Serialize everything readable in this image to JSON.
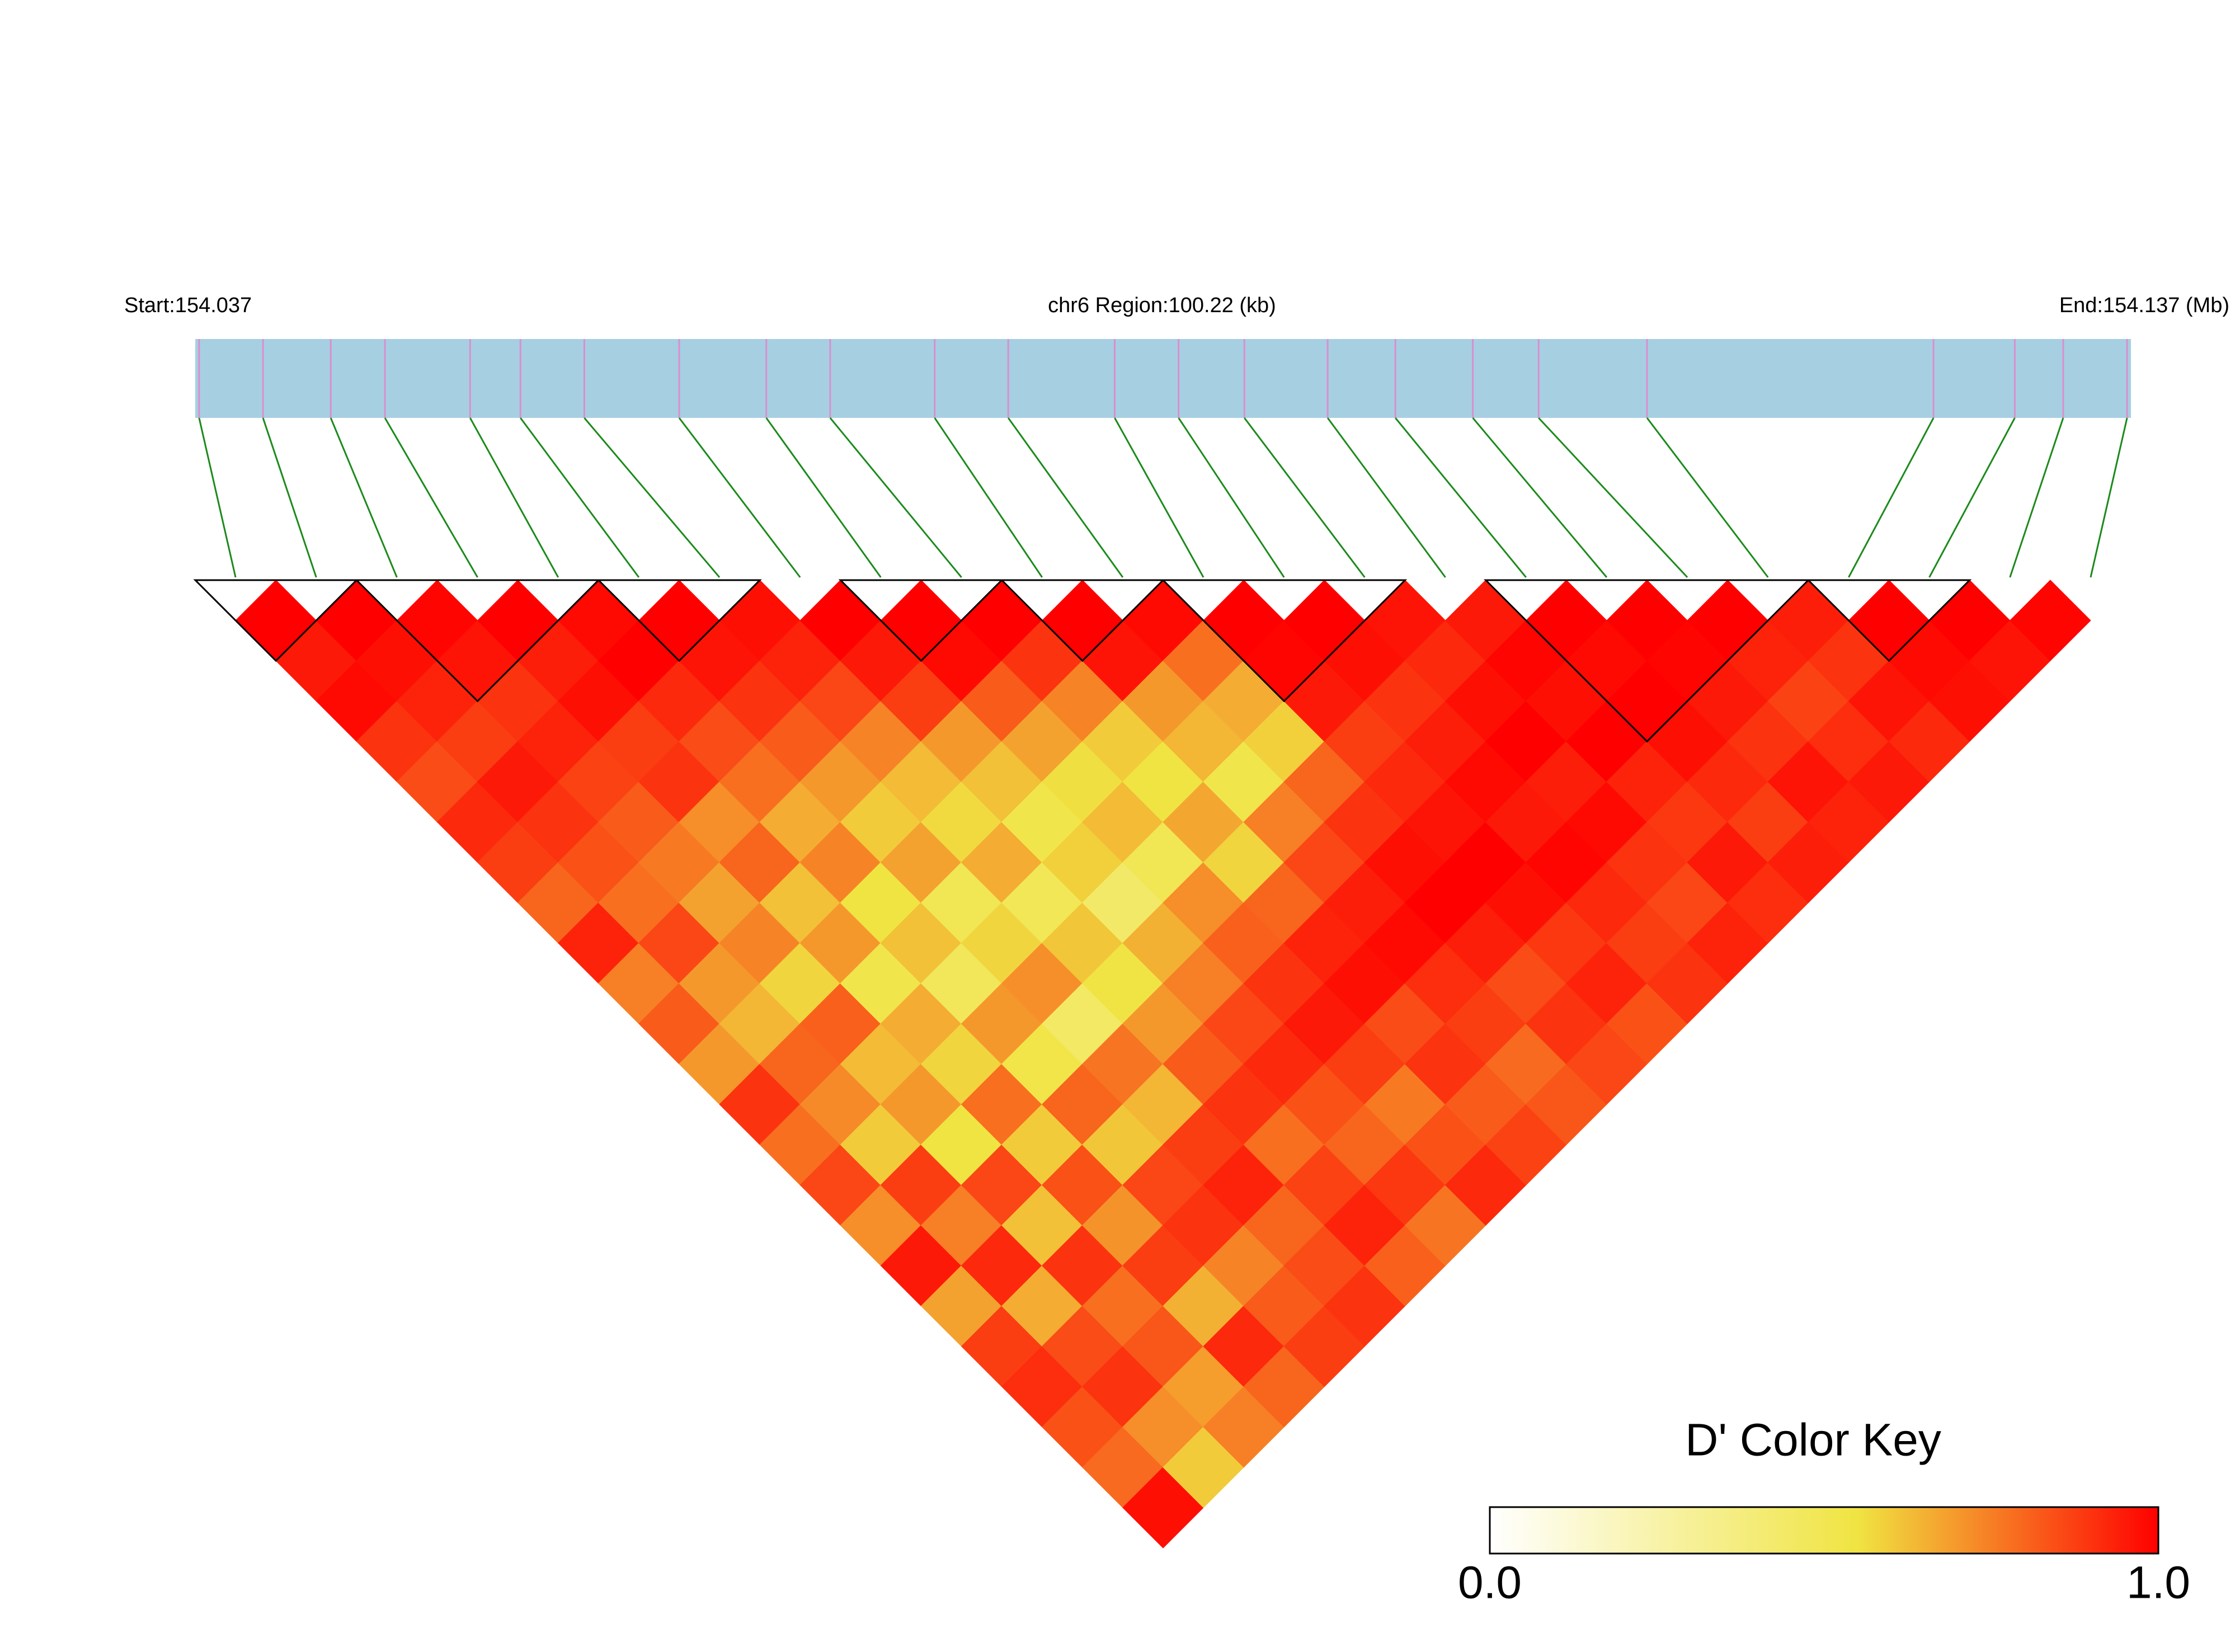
{
  "chart_data": {
    "type": "ld_heatmap",
    "start_label": "Start:154.037",
    "region_label": "chr6 Region:100.22 (kb)",
    "end_label": "End:154.137 (Mb)",
    "xlim": [
      154.037,
      154.137
    ],
    "positions": [
      154.0372,
      154.0405,
      154.044,
      154.0468,
      154.0512,
      154.0538,
      154.0571,
      154.062,
      154.0665,
      154.0698,
      154.0752,
      154.079,
      154.0845,
      154.0878,
      154.0912,
      154.0955,
      154.099,
      154.103,
      154.1064,
      154.112,
      154.1268,
      154.131,
      154.1335,
      154.1368
    ],
    "matrix": [
      [
        1,
        0.95,
        0.98,
        0.9,
        0.85,
        0.92,
        0.88,
        0.8,
        0.93,
        0.75,
        0.82,
        0.7,
        0.9,
        0.78,
        0.86,
        0.72,
        0.95,
        0.68,
        0.88,
        0.91,
        0.84,
        0.79,
        0.97
      ],
      [
        1,
        0.97,
        0.93,
        0.88,
        0.95,
        0.9,
        0.84,
        0.78,
        0.86,
        0.7,
        0.64,
        0.8,
        0.73,
        0.6,
        0.88,
        0.75,
        0.92,
        0.66,
        0.85,
        0.9,
        0.72,
        0.6
      ],
      [
        0.99,
        0.96,
        0.9,
        0.93,
        0.87,
        0.82,
        0.76,
        0.68,
        0.74,
        0.58,
        0.81,
        0.63,
        0.7,
        0.55,
        0.86,
        0.62,
        0.9,
        0.78,
        0.83,
        0.69,
        0.75
      ],
      [
        1,
        0.94,
        0.97,
        0.88,
        0.9,
        0.72,
        0.8,
        0.62,
        0.7,
        0.52,
        0.66,
        0.58,
        0.78,
        0.6,
        0.84,
        0.71,
        0.88,
        0.65,
        0.92,
        0.8
      ],
      [
        0.98,
        1,
        0.92,
        0.85,
        0.78,
        0.66,
        0.74,
        0.55,
        0.62,
        0.48,
        0.7,
        0.53,
        0.8,
        0.61,
        0.86,
        0.9,
        0.74,
        0.82,
        0.88
      ],
      [
        1,
        0.96,
        0.9,
        0.82,
        0.7,
        0.6,
        0.68,
        0.5,
        0.58,
        0.72,
        0.45,
        0.77,
        0.64,
        0.88,
        0.93,
        0.8,
        0.85,
        0.9
      ],
      [
        0.97,
        0.93,
        0.86,
        0.74,
        0.63,
        0.57,
        0.66,
        0.49,
        0.61,
        0.54,
        0.7,
        0.82,
        0.9,
        0.78,
        0.87,
        0.93,
        0.81
      ],
      [
        1,
        0.95,
        0.88,
        0.7,
        0.62,
        0.52,
        0.59,
        0.44,
        0.65,
        0.75,
        0.86,
        0.92,
        0.84,
        0.8,
        0.89,
        0.77
      ],
      [
        1,
        0.98,
        0.82,
        0.68,
        0.56,
        0.63,
        0.5,
        0.72,
        0.81,
        0.9,
        0.95,
        0.88,
        0.76,
        0.84,
        0.92
      ],
      [
        1,
        0.9,
        0.74,
        0.6,
        0.55,
        0.67,
        0.58,
        0.8,
        0.93,
        0.97,
        0.85,
        0.9,
        0.82,
        0.87
      ],
      [
        1,
        0.96,
        0.7,
        0.64,
        0.52,
        0.75,
        0.86,
        0.94,
        0.98,
        0.91,
        0.88,
        0.79,
        0.83
      ],
      [
        0.98,
        0.78,
        0.66,
        0.59,
        0.8,
        0.9,
        0.97,
        1,
        0.94,
        0.85,
        0.9,
        0.86
      ],
      [
        1,
        0.99,
        0.95,
        0.88,
        0.92,
        0.96,
        1,
        0.97,
        0.89,
        0.93,
        0.84
      ],
      [
        1,
        0.97,
        0.9,
        0.94,
        0.98,
        0.95,
        0.99,
        0.92,
        0.88,
        0.9
      ],
      [
        0.96,
        0.92,
        0.97,
        1,
        0.94,
        0.98,
        0.9,
        0.86,
        0.93
      ],
      [
        0.95,
        0.99,
        0.97,
        1,
        0.93,
        0.89,
        0.95,
        0.91
      ],
      [
        1,
        0.98,
        1,
        0.97,
        0.92,
        0.88,
        0.94
      ],
      [
        1,
        0.99,
        0.95,
        0.9,
        0.96,
        0.93
      ],
      [
        1,
        0.93,
        0.87,
        0.91,
        0.95
      ],
      [
        0.94,
        0.9,
        0.96,
        0.92
      ],
      [
        1,
        0.98,
        0.97
      ],
      [
        1,
        0.96
      ],
      [
        0.99
      ]
    ],
    "blocks": [
      [
        0,
        1
      ],
      [
        2,
        4
      ],
      [
        5,
        6
      ],
      [
        8,
        9
      ],
      [
        10,
        11
      ],
      [
        12,
        14
      ],
      [
        16,
        19
      ],
      [
        20,
        21
      ]
    ],
    "bar_color": "#a7cfe2",
    "snp_tick_color": "#d98fcf",
    "link_color": "#1b8a1b",
    "block_color": "#000000",
    "color_key": {
      "title": "D' Color Key",
      "lim": [
        0,
        1
      ],
      "ticks": [
        {
          "value": 0,
          "label": "0.0"
        },
        {
          "value": 1,
          "label": "1.0"
        }
      ],
      "stops": [
        [
          0,
          "#ffffff"
        ],
        [
          0.55,
          "#f0e442"
        ],
        [
          1,
          "#ff0000"
        ]
      ]
    }
  }
}
